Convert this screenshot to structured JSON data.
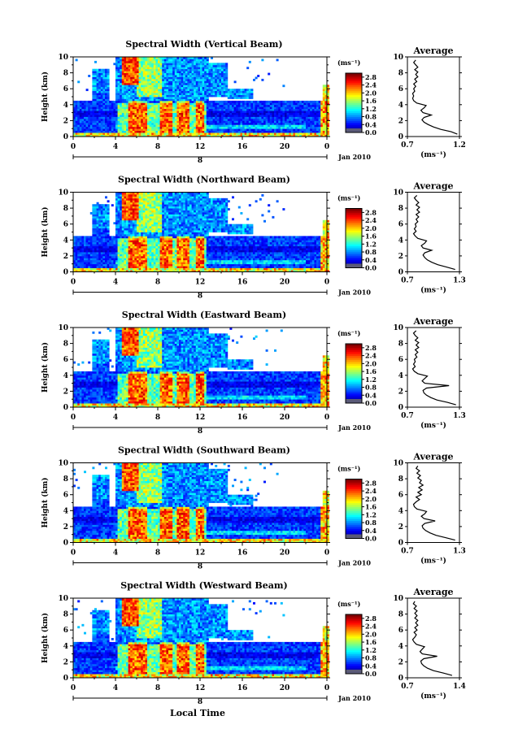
{
  "chart_data": [
    {
      "type": "heatmap",
      "title": "Spectral Width (Vertical Beam)",
      "ylabel": "Height (km)",
      "x_ticks": [
        "0",
        "4",
        "8",
        "12",
        "16",
        "20",
        "0"
      ],
      "y_ticks": [
        "0",
        "2",
        "4",
        "6",
        "8",
        "10"
      ],
      "xlim": [
        0,
        24
      ],
      "ylim": [
        0,
        10
      ],
      "date_mark": "8",
      "date_label": "Jan 2010",
      "colorbar": {
        "unit": "(ms⁻¹)",
        "ticks": [
          "0.0",
          "0.4",
          "0.8",
          "1.2",
          "1.6",
          "2.0",
          "2.4",
          "2.8"
        ],
        "range": [
          0,
          3.0
        ]
      },
      "profile": {
        "title": "Average",
        "xlabel": "(ms⁻¹)",
        "x_ticks": [
          "0.7",
          "1.2"
        ],
        "xlim": [
          0.7,
          1.2
        ],
        "y_ticks": [
          "0",
          "2",
          "4",
          "6",
          "8",
          "10"
        ],
        "points": [
          [
            1.18,
            0.3
          ],
          [
            1.12,
            0.6
          ],
          [
            1.02,
            0.9
          ],
          [
            0.95,
            1.2
          ],
          [
            0.9,
            1.5
          ],
          [
            0.86,
            1.8
          ],
          [
            0.84,
            2.1
          ],
          [
            0.86,
            2.4
          ],
          [
            0.93,
            2.7
          ],
          [
            0.85,
            3.0
          ],
          [
            0.83,
            3.3
          ],
          [
            0.86,
            3.6
          ],
          [
            0.88,
            3.9
          ],
          [
            0.79,
            4.2
          ],
          [
            0.76,
            4.5
          ],
          [
            0.75,
            4.8
          ],
          [
            0.76,
            5.1
          ],
          [
            0.75,
            5.4
          ],
          [
            0.77,
            5.7
          ],
          [
            0.76,
            6.0
          ],
          [
            0.78,
            6.3
          ],
          [
            0.76,
            6.6
          ],
          [
            0.79,
            6.9
          ],
          [
            0.77,
            7.2
          ],
          [
            0.8,
            7.5
          ],
          [
            0.78,
            7.8
          ],
          [
            0.8,
            8.1
          ],
          [
            0.77,
            8.4
          ],
          [
            0.8,
            8.7
          ],
          [
            0.78,
            9.0
          ],
          [
            0.76,
            9.3
          ],
          [
            0.78,
            9.6
          ]
        ]
      }
    },
    {
      "type": "heatmap",
      "title": "Spectral Width (Northward Beam)",
      "ylabel": "Height (km)",
      "x_ticks": [
        "0",
        "4",
        "8",
        "12",
        "16",
        "20",
        "0"
      ],
      "y_ticks": [
        "0",
        "2",
        "4",
        "6",
        "8",
        "10"
      ],
      "xlim": [
        0,
        24
      ],
      "ylim": [
        0,
        10
      ],
      "date_mark": "8",
      "date_label": "Jan 2010",
      "colorbar": {
        "unit": "(ms⁻¹)",
        "ticks": [
          "0.0",
          "0.4",
          "0.8",
          "1.2",
          "1.6",
          "2.0",
          "2.4",
          "2.8"
        ],
        "range": [
          0,
          3.0
        ]
      },
      "profile": {
        "title": "Average",
        "xlabel": "(ms⁻¹)",
        "x_ticks": [
          "0.7",
          "1.3"
        ],
        "xlim": [
          0.7,
          1.3
        ],
        "y_ticks": [
          "0",
          "2",
          "4",
          "6",
          "8",
          "10"
        ],
        "points": [
          [
            1.25,
            0.3
          ],
          [
            1.15,
            0.6
          ],
          [
            1.05,
            0.9
          ],
          [
            0.98,
            1.2
          ],
          [
            0.93,
            1.5
          ],
          [
            0.9,
            1.8
          ],
          [
            0.88,
            2.1
          ],
          [
            0.9,
            2.4
          ],
          [
            0.98,
            2.7
          ],
          [
            0.88,
            3.0
          ],
          [
            0.86,
            3.3
          ],
          [
            0.9,
            3.6
          ],
          [
            0.92,
            3.9
          ],
          [
            0.82,
            4.2
          ],
          [
            0.79,
            4.5
          ],
          [
            0.77,
            4.8
          ],
          [
            0.8,
            5.1
          ],
          [
            0.78,
            5.4
          ],
          [
            0.8,
            5.7
          ],
          [
            0.79,
            6.0
          ],
          [
            0.82,
            6.3
          ],
          [
            0.8,
            6.6
          ],
          [
            0.83,
            6.9
          ],
          [
            0.8,
            7.2
          ],
          [
            0.84,
            7.5
          ],
          [
            0.81,
            7.8
          ],
          [
            0.84,
            8.1
          ],
          [
            0.8,
            8.4
          ],
          [
            0.83,
            8.7
          ],
          [
            0.8,
            9.0
          ],
          [
            0.78,
            9.3
          ],
          [
            0.81,
            9.6
          ]
        ]
      }
    },
    {
      "type": "heatmap",
      "title": "Spectral Width (Eastward Beam)",
      "ylabel": "Height (km)",
      "x_ticks": [
        "0",
        "4",
        "8",
        "12",
        "16",
        "20",
        "0"
      ],
      "y_ticks": [
        "0",
        "2",
        "4",
        "6",
        "8",
        "10"
      ],
      "xlim": [
        0,
        24
      ],
      "ylim": [
        0,
        10
      ],
      "date_mark": "8",
      "date_label": "Jan 2010",
      "colorbar": {
        "unit": "(ms⁻¹)",
        "ticks": [
          "0.0",
          "0.4",
          "0.8",
          "1.2",
          "1.6",
          "2.0",
          "2.4",
          "2.8"
        ],
        "range": [
          0,
          3.0
        ]
      },
      "profile": {
        "title": "Average",
        "xlabel": "(ms⁻¹)",
        "x_ticks": [
          "0.7",
          "1.3"
        ],
        "xlim": [
          0.7,
          1.3
        ],
        "y_ticks": [
          "0",
          "2",
          "4",
          "6",
          "8",
          "10"
        ],
        "points": [
          [
            1.26,
            0.3
          ],
          [
            1.16,
            0.6
          ],
          [
            1.04,
            0.9
          ],
          [
            0.97,
            1.2
          ],
          [
            0.92,
            1.5
          ],
          [
            0.89,
            1.8
          ],
          [
            0.88,
            2.1
          ],
          [
            0.92,
            2.4
          ],
          [
            1.18,
            2.7
          ],
          [
            0.9,
            3.0
          ],
          [
            0.87,
            3.3
          ],
          [
            0.9,
            3.6
          ],
          [
            0.93,
            3.9
          ],
          [
            0.82,
            4.2
          ],
          [
            0.78,
            4.5
          ],
          [
            0.76,
            4.8
          ],
          [
            0.79,
            5.1
          ],
          [
            0.77,
            5.4
          ],
          [
            0.79,
            5.7
          ],
          [
            0.78,
            6.0
          ],
          [
            0.81,
            6.3
          ],
          [
            0.79,
            6.6
          ],
          [
            0.82,
            6.9
          ],
          [
            0.79,
            7.2
          ],
          [
            0.83,
            7.5
          ],
          [
            0.8,
            7.8
          ],
          [
            0.83,
            8.1
          ],
          [
            0.79,
            8.4
          ],
          [
            0.82,
            8.7
          ],
          [
            0.79,
            9.0
          ],
          [
            0.77,
            9.3
          ],
          [
            0.8,
            9.6
          ]
        ]
      }
    },
    {
      "type": "heatmap",
      "title": "Spectral Width (Southward Beam)",
      "ylabel": "Height (km)",
      "x_ticks": [
        "0",
        "4",
        "8",
        "12",
        "16",
        "20",
        "0"
      ],
      "y_ticks": [
        "0",
        "2",
        "4",
        "6",
        "8",
        "10"
      ],
      "xlim": [
        0,
        24
      ],
      "ylim": [
        0,
        10
      ],
      "date_mark": "8",
      "date_label": "Jan 2010",
      "colorbar": {
        "unit": "(ms⁻¹)",
        "ticks": [
          "0.0",
          "0.4",
          "0.8",
          "1.2",
          "1.6",
          "2.0",
          "2.4",
          "2.8"
        ],
        "range": [
          0,
          3.0
        ]
      },
      "profile": {
        "title": "Average",
        "xlabel": "(ms⁻¹)",
        "x_ticks": [
          "0.7",
          "1.3"
        ],
        "xlim": [
          0.7,
          1.3
        ],
        "y_ticks": [
          "0",
          "2",
          "4",
          "6",
          "8",
          "10"
        ],
        "points": [
          [
            1.25,
            0.3
          ],
          [
            1.14,
            0.6
          ],
          [
            1.03,
            0.9
          ],
          [
            0.96,
            1.2
          ],
          [
            0.91,
            1.5
          ],
          [
            0.88,
            1.8
          ],
          [
            0.87,
            2.1
          ],
          [
            0.9,
            2.4
          ],
          [
            1.02,
            2.7
          ],
          [
            0.89,
            3.0
          ],
          [
            0.86,
            3.3
          ],
          [
            0.9,
            3.6
          ],
          [
            0.92,
            3.9
          ],
          [
            0.81,
            4.2
          ],
          [
            0.78,
            4.5
          ],
          [
            0.77,
            4.8
          ],
          [
            0.8,
            5.1
          ],
          [
            0.84,
            5.4
          ],
          [
            0.8,
            5.7
          ],
          [
            0.86,
            6.0
          ],
          [
            0.82,
            6.3
          ],
          [
            0.87,
            6.6
          ],
          [
            0.83,
            6.9
          ],
          [
            0.88,
            7.2
          ],
          [
            0.84,
            7.5
          ],
          [
            0.86,
            7.8
          ],
          [
            0.82,
            8.1
          ],
          [
            0.85,
            8.4
          ],
          [
            0.81,
            8.7
          ],
          [
            0.84,
            9.0
          ],
          [
            0.8,
            9.3
          ],
          [
            0.82,
            9.6
          ]
        ]
      }
    },
    {
      "type": "heatmap",
      "title": "Spectral Width (Westward Beam)",
      "ylabel": "Height (km)",
      "xlabel": "Local Time",
      "x_ticks": [
        "0",
        "4",
        "8",
        "12",
        "16",
        "20",
        "0"
      ],
      "y_ticks": [
        "0",
        "2",
        "4",
        "6",
        "8",
        "10"
      ],
      "xlim": [
        0,
        24
      ],
      "ylim": [
        0,
        10
      ],
      "date_mark": "8",
      "date_label": "Jan 2010",
      "colorbar": {
        "unit": "(ms⁻¹)",
        "ticks": [
          "0.0",
          "0.4",
          "0.8",
          "1.2",
          "1.6",
          "2.0",
          "2.4",
          "2.8"
        ],
        "range": [
          0,
          3.0
        ]
      },
      "profile": {
        "title": "Average",
        "xlabel": "(ms⁻¹)",
        "x_ticks": [
          "0.7",
          "1.4"
        ],
        "xlim": [
          0.7,
          1.4
        ],
        "y_ticks": [
          "0",
          "2",
          "4",
          "6",
          "8",
          "10"
        ],
        "points": [
          [
            1.3,
            0.3
          ],
          [
            1.18,
            0.6
          ],
          [
            1.05,
            0.9
          ],
          [
            0.97,
            1.2
          ],
          [
            0.92,
            1.5
          ],
          [
            0.89,
            1.8
          ],
          [
            0.88,
            2.1
          ],
          [
            0.92,
            2.4
          ],
          [
            1.1,
            2.7
          ],
          [
            0.9,
            3.0
          ],
          [
            0.87,
            3.3
          ],
          [
            0.9,
            3.6
          ],
          [
            0.93,
            3.9
          ],
          [
            0.82,
            4.2
          ],
          [
            0.79,
            4.5
          ],
          [
            0.77,
            4.8
          ],
          [
            0.8,
            5.1
          ],
          [
            0.82,
            5.4
          ],
          [
            0.79,
            5.7
          ],
          [
            0.83,
            6.0
          ],
          [
            0.8,
            6.3
          ],
          [
            0.84,
            6.6
          ],
          [
            0.81,
            6.9
          ],
          [
            0.84,
            7.2
          ],
          [
            0.8,
            7.5
          ],
          [
            0.83,
            7.8
          ],
          [
            0.8,
            8.1
          ],
          [
            0.83,
            8.4
          ],
          [
            0.79,
            8.7
          ],
          [
            0.82,
            9.0
          ],
          [
            0.78,
            9.3
          ],
          [
            0.8,
            9.6
          ]
        ]
      }
    }
  ]
}
